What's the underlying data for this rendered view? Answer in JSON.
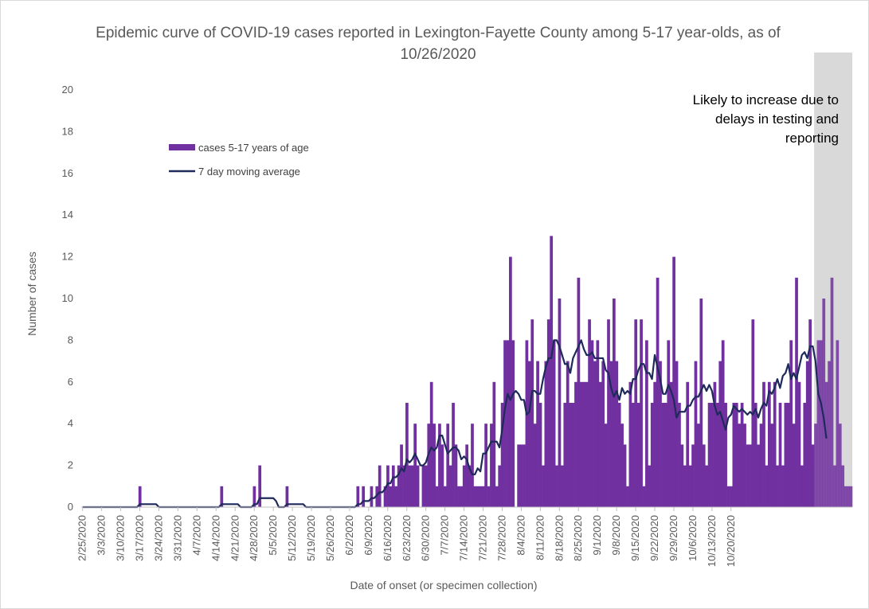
{
  "chart_data": {
    "type": "bar",
    "title": "Epidemic curve of COVID-19 cases reported in Lexington-Fayette County among 5-17 year-olds, as of 10/26/2020",
    "xlabel": "Date of onset (or specimen collection)",
    "ylabel": "Number of cases",
    "ylim": [
      0,
      20
    ],
    "yticks": [
      0,
      2,
      4,
      6,
      8,
      10,
      12,
      14,
      16,
      18,
      20
    ],
    "start_date": "2/25/2020",
    "xtick_labels": [
      "2/25/2020",
      "3/3/2020",
      "3/10/2020",
      "3/17/2020",
      "3/24/2020",
      "3/31/2020",
      "4/7/2020",
      "4/14/2020",
      "4/21/2020",
      "4/28/2020",
      "5/5/2020",
      "5/12/2020",
      "5/19/2020",
      "5/26/2020",
      "6/2/2020",
      "6/9/2020",
      "6/16/2020",
      "6/23/2020",
      "6/30/2020",
      "7/7/2020",
      "7/14/2020",
      "7/21/2020",
      "7/28/2020",
      "8/4/2020",
      "8/11/2020",
      "8/18/2020",
      "8/25/2020",
      "9/1/2020",
      "9/8/2020",
      "9/15/2020",
      "9/22/2020",
      "9/29/2020",
      "10/6/2020",
      "10/13/2020",
      "10/20/2020"
    ],
    "legend": {
      "placement": "upper-left"
    },
    "series": [
      {
        "name": "cases 5-17 years of age",
        "type": "bar",
        "color": "#7030a0",
        "values": [
          0,
          0,
          0,
          0,
          0,
          0,
          0,
          0,
          0,
          0,
          0,
          0,
          0,
          0,
          0,
          0,
          0,
          0,
          0,
          0,
          0,
          1,
          0,
          0,
          0,
          0,
          0,
          0,
          0,
          0,
          0,
          0,
          0,
          0,
          0,
          0,
          0,
          0,
          0,
          0,
          0,
          0,
          0,
          0,
          0,
          0,
          0,
          0,
          0,
          0,
          0,
          1,
          0,
          0,
          0,
          0,
          0,
          0,
          0,
          0,
          0,
          0,
          0,
          1,
          0,
          2,
          0,
          0,
          0,
          0,
          0,
          0,
          0,
          0,
          0,
          1,
          0,
          0,
          0,
          0,
          0,
          0,
          0,
          0,
          0,
          0,
          0,
          0,
          0,
          0,
          0,
          0,
          0,
          0,
          0,
          0,
          0,
          0,
          0,
          0,
          0,
          1,
          0,
          1,
          0,
          0,
          1,
          0,
          1,
          2,
          0,
          1,
          2,
          1,
          2,
          1,
          2,
          3,
          2,
          5,
          2,
          2,
          4,
          2,
          0,
          2,
          2,
          4,
          6,
          4,
          1,
          4,
          3,
          1,
          4,
          2,
          5,
          3,
          1,
          1,
          2,
          3,
          2,
          4,
          1,
          1,
          1,
          1,
          4,
          1,
          4,
          6,
          1,
          2,
          5,
          8,
          8,
          12,
          8,
          0,
          3,
          3,
          3,
          8,
          7,
          9,
          4,
          7,
          5,
          2,
          7,
          9,
          13,
          8,
          2,
          10,
          2,
          5,
          7,
          5,
          5,
          6,
          11,
          6,
          6,
          6,
          9,
          8,
          7,
          8,
          6,
          7,
          4,
          9,
          7,
          10,
          7,
          5,
          4,
          3,
          1,
          6,
          5,
          9,
          5,
          9,
          1,
          8,
          2,
          5,
          6,
          11,
          7,
          5,
          5,
          8,
          6,
          12,
          7,
          5,
          3,
          2,
          6,
          2,
          3,
          7,
          4,
          10,
          3,
          2,
          5,
          5,
          6,
          5,
          7,
          8,
          5,
          1,
          1,
          5,
          5,
          4,
          5,
          4,
          3,
          3,
          9,
          5,
          3,
          4,
          6,
          2,
          6,
          4,
          6,
          2,
          5,
          2,
          5,
          5,
          8,
          4,
          11,
          6,
          2,
          5,
          7,
          9,
          3,
          4,
          8,
          8,
          10,
          6,
          7,
          11,
          2,
          8,
          4,
          2,
          1,
          1,
          1
        ],
        "values_axis": "daily, one value per day starting 2/25/2020"
      },
      {
        "name": "7 day moving average",
        "type": "line",
        "color": "#1f2a5a",
        "values": [
          0,
          0,
          0,
          0,
          0,
          0,
          0,
          0,
          0,
          0,
          0,
          0,
          0,
          0,
          0,
          0,
          0,
          0,
          0,
          0,
          0,
          0.14,
          0.14,
          0.14,
          0.14,
          0.14,
          0.14,
          0.14,
          0,
          0,
          0,
          0,
          0,
          0,
          0,
          0,
          0,
          0,
          0,
          0,
          0,
          0,
          0,
          0,
          0,
          0,
          0,
          0,
          0,
          0,
          0,
          0.14,
          0.14,
          0.14,
          0.14,
          0.14,
          0.14,
          0.14,
          0,
          0,
          0,
          0,
          0,
          0.14,
          0.14,
          0.43,
          0.43,
          0.43,
          0.43,
          0.43,
          0.43,
          0.29,
          0,
          0,
          0,
          0.14,
          0.14,
          0.14,
          0.14,
          0.14,
          0.14,
          0.14,
          0,
          0,
          0,
          0,
          0,
          0,
          0,
          0,
          0,
          0,
          0,
          0,
          0,
          0,
          0,
          0,
          0,
          0,
          0,
          0.14,
          0.14,
          0.29,
          0.29,
          0.29,
          0.43,
          0.43,
          0.57,
          0.71,
          0.71,
          0.86,
          1.14,
          1.14,
          1.43,
          1.43,
          1.57,
          1.86,
          1.71,
          2.29,
          2.14,
          2.29,
          2.57,
          2.29,
          2,
          2,
          2.14,
          2.57,
          2.86,
          2.71,
          2.86,
          3.43,
          3.43,
          3,
          2.57,
          2.71,
          2.86,
          2.86,
          2.71,
          2.29,
          2.43,
          2.29,
          1.86,
          1.57,
          1.57,
          1.86,
          1.71,
          2.57,
          2.57,
          2.86,
          3.14,
          3.14,
          3.14,
          2.86,
          3.71,
          4.71,
          5.43,
          5.14,
          5.43,
          5.57,
          5.43,
          5.14,
          5.14,
          4.43,
          4.57,
          5.57,
          5.57,
          5.43,
          5.43,
          6.14,
          6.71,
          7.14,
          7.14,
          8,
          8,
          7.71,
          7.29,
          6.86,
          6.86,
          6.43,
          7.14,
          7.43,
          7.71,
          8,
          7.57,
          7.29,
          7.29,
          7.43,
          7.14,
          7.14,
          7.14,
          7.14,
          6.57,
          6.43,
          5.71,
          5.29,
          5.57,
          5.14,
          5.71,
          5.43,
          5.57,
          5.43,
          6.14,
          6.14,
          6.57,
          6.86,
          6.86,
          6.43,
          6.43,
          6.14,
          7.29,
          6.71,
          6.14,
          5.43,
          5.43,
          5.86,
          5.57,
          5.14,
          4.29,
          4.57,
          4.57,
          4.57,
          4.86,
          4.86,
          5.14,
          5.29,
          5.29,
          5.57,
          5.86,
          5.57,
          5.86,
          5.57,
          4.86,
          4.43,
          4.57,
          4.14,
          3.71,
          4.29,
          4.43,
          4.86,
          4.71,
          4.57,
          4.71,
          4.57,
          4.43,
          4.57,
          4.43,
          4.71,
          4.29,
          4.71,
          5,
          4.86,
          5.57,
          5.43,
          5.71,
          6.14,
          5.71,
          6.29,
          6.43,
          6.86,
          6.14,
          6.43,
          6.14,
          6.71,
          7.29,
          7.43,
          7.14,
          7.71,
          7.71,
          7,
          5.43,
          5,
          4.29,
          3.29
        ],
        "values_axis": "daily, one value per day starting 2/25/2020"
      }
    ],
    "annotation": {
      "lines": [
        "Likely to increase due to",
        "delays in testing and",
        "reporting"
      ],
      "shaded_region_color": "#d9d9d9"
    }
  }
}
